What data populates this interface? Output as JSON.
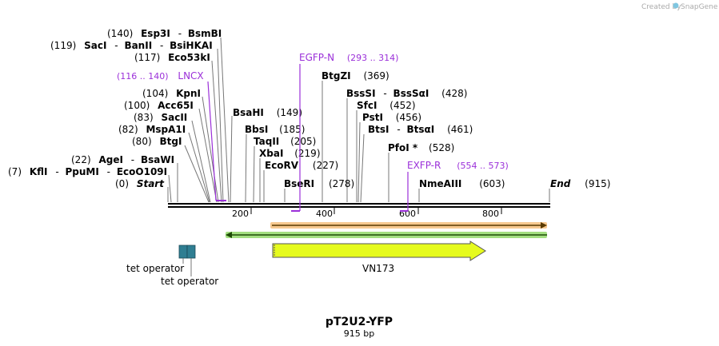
{
  "credit": "Created by",
  "brand": "SnapGene",
  "title": "pT2U2-YFP",
  "subtitle": "915 bp",
  "ticks": [
    "200",
    "400",
    "600",
    "800"
  ],
  "sites": [
    {
      "id": "esp3i",
      "pre": "(140)",
      "n1": "Esp3I",
      "sep": "-",
      "n2": "BsmBI",
      "post": ""
    },
    {
      "id": "saci-banii",
      "pre": "(119)",
      "n1": "SacI",
      "sep": "-",
      "n2": "BanII",
      "sep2": "-",
      "n3": "BsiHKAI",
      "post": ""
    },
    {
      "id": "eco53ki",
      "pre": "(117)",
      "n1": "Eco53kI",
      "post": ""
    },
    {
      "id": "kpni",
      "pre": "(104)",
      "n1": "KpnI",
      "post": ""
    },
    {
      "id": "acc65i",
      "pre": "(100)",
      "n1": "Acc65I",
      "post": ""
    },
    {
      "id": "sacii",
      "pre": "(83)",
      "n1": "SacII",
      "post": ""
    },
    {
      "id": "mspa1i",
      "pre": "(82)",
      "n1": "MspA1I",
      "post": ""
    },
    {
      "id": "btgi",
      "pre": "(80)",
      "n1": "BtgI",
      "post": ""
    },
    {
      "id": "agei",
      "pre": "(22)",
      "n1": "AgeI",
      "sep": "-",
      "n2": "BsaWI",
      "post": ""
    },
    {
      "id": "kfli",
      "pre": "(7)",
      "n1": "KflI",
      "sep": "-",
      "n2": "PpuMI",
      "sep2": "-",
      "n3": "EcoO109I",
      "post": ""
    },
    {
      "id": "start",
      "pre": "(0)",
      "n1": "Start",
      "post": ""
    },
    {
      "id": "bsahi",
      "pre": "",
      "n1": "BsaHI",
      "post": "(149)"
    },
    {
      "id": "bbsi",
      "pre": "",
      "n1": "BbsI",
      "post": "(185)"
    },
    {
      "id": "taqii",
      "pre": "",
      "n1": "TaqII",
      "post": "(205)"
    },
    {
      "id": "xbai",
      "pre": "",
      "n1": "XbaI",
      "post": "(219)"
    },
    {
      "id": "ecorv",
      "pre": "",
      "n1": "EcoRV",
      "post": "(227)"
    },
    {
      "id": "bseri",
      "pre": "",
      "n1": "BseRI",
      "post": "(278)"
    },
    {
      "id": "btgzi",
      "pre": "",
      "n1": "BtgZI",
      "post": "(369)"
    },
    {
      "id": "bsssi",
      "pre": "",
      "n1": "BssSI",
      "sep": "-",
      "n2": "BssSαI",
      "post": "(428)"
    },
    {
      "id": "sfci",
      "pre": "",
      "n1": "SfcI",
      "post": "(452)"
    },
    {
      "id": "psti",
      "pre": "",
      "n1": "PstI",
      "post": "(456)"
    },
    {
      "id": "btsi",
      "pre": "",
      "n1": "BtsI",
      "sep": "-",
      "n2": "BtsαI",
      "post": "(461)"
    },
    {
      "id": "pfoi",
      "pre": "",
      "n1": "PfoI *",
      "post": "(528)"
    },
    {
      "id": "nmeaiii",
      "pre": "",
      "n1": "NmeAIII",
      "post": "(603)"
    },
    {
      "id": "end",
      "pre": "",
      "n1": "End",
      "post": "(915)"
    }
  ],
  "primers": [
    {
      "id": "egfp-n",
      "name": "EGFP-N",
      "range": "(293 .. 314)"
    },
    {
      "id": "lncx",
      "name": "LNCX",
      "range": "(116 .. 140)",
      "range_first": true
    },
    {
      "id": "exfp-r",
      "name": "EXFP-R",
      "range": "(554 .. 573)"
    }
  ],
  "features": [
    {
      "id": "tet-operator-1",
      "label": "tet operator"
    },
    {
      "id": "tet-operator-2",
      "label": "tet operator"
    },
    {
      "id": "vn173",
      "label": "VN173"
    }
  ],
  "colors": {
    "primer": "#9b30d9",
    "orange_arrow": "#f2a545",
    "green_arrow": "#7cd14a",
    "feature_box": "#2f7e92",
    "vn173_fill": "#e6fb1e"
  }
}
